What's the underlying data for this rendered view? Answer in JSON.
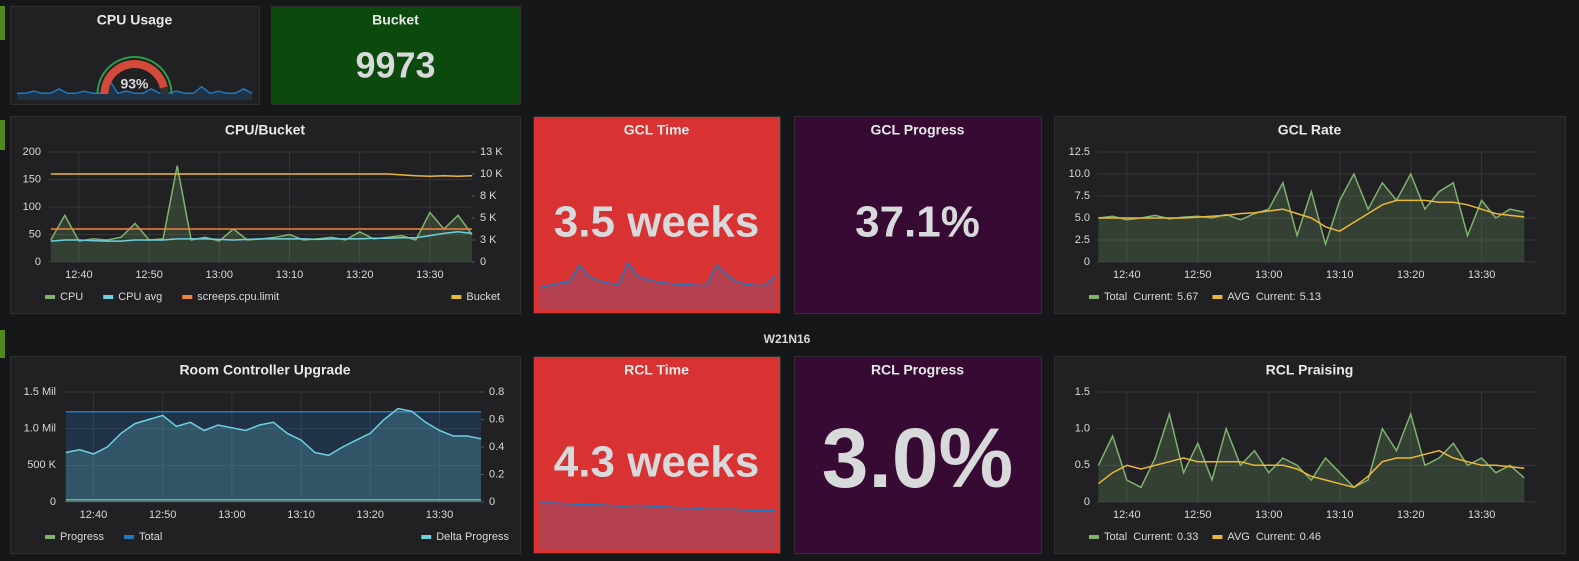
{
  "row_title": "W21N16",
  "chart_data": [
    {
      "type": "gauge",
      "title": "CPU Usage",
      "value": 93,
      "value_label": "93%",
      "ylim": [
        0,
        100
      ],
      "color": "#d44a3a",
      "spark_color": "#1f78c1",
      "spark": [
        3,
        3,
        4,
        3,
        3,
        5,
        3,
        3,
        4,
        3,
        3,
        9,
        3,
        4,
        3,
        3,
        5,
        3,
        3,
        4,
        3,
        3,
        6,
        3,
        4,
        3,
        3,
        5,
        3
      ]
    },
    {
      "type": "stat",
      "title": "Bucket",
      "value": 9973,
      "background": "#0b4a0c"
    },
    {
      "type": "line",
      "title": "CPU/Bucket",
      "grid": true,
      "xlim": [
        755.6,
        816
      ],
      "ylim": [
        0,
        200
      ],
      "y2lim": [
        0,
        12500
      ],
      "xticks": [
        {
          "value": 760,
          "label": "12:40"
        },
        {
          "value": 770,
          "label": "12:50"
        },
        {
          "value": 780,
          "label": "13:00"
        },
        {
          "value": 790,
          "label": "13:10"
        },
        {
          "value": 800,
          "label": "13:20"
        },
        {
          "value": 810,
          "label": "13:30"
        }
      ],
      "yticks": [
        0,
        50,
        100,
        150,
        200
      ],
      "y2ticks": [
        0,
        {
          "value": 2500,
          "label": "3 K"
        },
        {
          "value": 5000,
          "label": "5 K"
        },
        {
          "value": 7500,
          "label": "8 K"
        },
        {
          "value": 10000,
          "label": "10 K"
        },
        {
          "value": 12500,
          "label": "13 K"
        }
      ],
      "x": [
        756,
        758,
        760,
        762,
        764,
        766,
        768,
        770,
        772,
        774,
        776,
        778,
        780,
        782,
        784,
        786,
        788,
        790,
        792,
        794,
        796,
        798,
        800,
        802,
        804,
        806,
        808,
        810,
        812,
        814,
        816
      ],
      "series": [
        {
          "name": "CPU",
          "color": "#7eb26d",
          "fill": true,
          "values": [
            40,
            85,
            38,
            42,
            40,
            45,
            70,
            40,
            42,
            175,
            40,
            45,
            38,
            60,
            40,
            42,
            45,
            50,
            40,
            42,
            45,
            40,
            55,
            42,
            45,
            48,
            40,
            90,
            60,
            85,
            50
          ]
        },
        {
          "name": "CPU avg",
          "color": "#6ed0e0",
          "fill": false,
          "values": [
            38,
            40,
            40,
            39,
            38,
            38,
            40,
            40,
            40,
            42,
            42,
            42,
            41,
            40,
            41,
            42,
            42,
            42,
            42,
            41,
            42,
            42,
            42,
            43,
            43,
            44,
            44,
            48,
            52,
            55,
            52
          ]
        },
        {
          "name": "screeps.cpu.limit",
          "color": "#ef843c",
          "fill": false,
          "values": [
            60,
            60,
            60,
            60,
            60,
            60,
            60,
            60,
            60,
            60,
            60,
            60,
            60,
            60,
            60,
            60,
            60,
            60,
            60,
            60,
            60,
            60,
            60,
            60,
            60,
            60,
            60,
            60,
            60,
            60,
            60
          ]
        },
        {
          "name": "Bucket",
          "color": "#eab839",
          "fill": false,
          "axis": "y2",
          "values": [
            10000,
            10000,
            10000,
            10000,
            10000,
            10000,
            10000,
            10000,
            10000,
            10000,
            10000,
            10000,
            10000,
            10000,
            10000,
            10000,
            10000,
            10000,
            10000,
            10000,
            10000,
            10000,
            10000,
            10000,
            10000,
            9900,
            9800,
            9750,
            9800,
            9750,
            9800
          ]
        }
      ]
    },
    {
      "type": "stat",
      "title": "GCL Time",
      "value": "3.5 weeks",
      "background": "#d83232",
      "spark_color": "#1f78c1",
      "spark": [
        2,
        2.2,
        2.4,
        2.5,
        4,
        3,
        2.6,
        2.4,
        2.3,
        4.2,
        3,
        2.7,
        2.5,
        2.4,
        2.3,
        2.3,
        2.2,
        2.2,
        4,
        3.2,
        2.6,
        2.3,
        2.2,
        2.2,
        3
      ]
    },
    {
      "type": "stat",
      "title": "GCL Progress",
      "value": "37.1%",
      "background": "#370a33"
    },
    {
      "type": "line",
      "title": "GCL Rate",
      "grid": true,
      "legend_stat": "Current:",
      "xlim": [
        755.8,
        817.8
      ],
      "ylim": [
        0,
        12.5
      ],
      "xticks": [
        {
          "value": 760,
          "label": "12:40"
        },
        {
          "value": 770,
          "label": "12:50"
        },
        {
          "value": 780,
          "label": "13:00"
        },
        {
          "value": 790,
          "label": "13:10"
        },
        {
          "value": 800,
          "label": "13:20"
        },
        {
          "value": 810,
          "label": "13:30"
        }
      ],
      "yticks": [
        0,
        2.5,
        {
          "value": 5,
          "label": "5.0"
        },
        7.5,
        {
          "value": 10,
          "label": "10.0"
        },
        12.5
      ],
      "x": [
        756,
        758,
        760,
        762,
        764,
        766,
        768,
        770,
        772,
        774,
        776,
        778,
        780,
        782,
        784,
        786,
        788,
        790,
        792,
        794,
        796,
        798,
        800,
        802,
        804,
        806,
        808,
        810,
        812,
        814,
        816
      ],
      "series": [
        {
          "name": "Total",
          "color": "#7eb26d",
          "fill": true,
          "current": 5.67,
          "values": [
            5,
            5.2,
            4.8,
            5,
            5.3,
            4.9,
            5.1,
            5.2,
            5,
            5.4,
            4.8,
            5.5,
            6,
            9,
            3,
            8,
            2,
            7,
            10,
            6,
            9,
            7,
            10,
            6,
            8,
            9,
            3,
            7,
            5,
            6,
            5.67
          ]
        },
        {
          "name": "AVG",
          "color": "#eab839",
          "fill": false,
          "current": 5.13,
          "values": [
            5,
            5,
            5,
            5,
            5,
            5,
            5,
            5.1,
            5.2,
            5.3,
            5.5,
            5.6,
            5.8,
            6,
            5.5,
            5,
            4,
            3.5,
            4.5,
            5.5,
            6.5,
            7,
            7,
            7,
            6.8,
            6.8,
            6.5,
            6,
            5.5,
            5.3,
            5.13
          ]
        }
      ]
    },
    {
      "type": "line",
      "title": "Room Controller Upgrade",
      "grid": true,
      "xlim": [
        755.6,
        816
      ],
      "ylim": [
        0,
        1500000
      ],
      "y2lim": [
        0,
        0.8
      ],
      "xticks": [
        {
          "value": 760,
          "label": "12:40"
        },
        {
          "value": 770,
          "label": "12:50"
        },
        {
          "value": 780,
          "label": "13:00"
        },
        {
          "value": 790,
          "label": "13:10"
        },
        {
          "value": 800,
          "label": "13:20"
        },
        {
          "value": 810,
          "label": "13:30"
        }
      ],
      "yticks": [
        0,
        {
          "value": 500000,
          "label": "500 K"
        },
        {
          "value": 1000000,
          "label": "1.0 Mil"
        },
        {
          "value": 1500000,
          "label": "1.5 Mil"
        }
      ],
      "y2ticks": [
        0,
        0.2,
        0.4,
        0.6,
        0.8
      ],
      "x": [
        756,
        758,
        760,
        762,
        764,
        766,
        768,
        770,
        772,
        774,
        776,
        778,
        780,
        782,
        784,
        786,
        788,
        790,
        792,
        794,
        796,
        798,
        800,
        802,
        804,
        806,
        808,
        810,
        812,
        814,
        816
      ],
      "series": [
        {
          "name": "Progress",
          "color": "#7eb26d",
          "fill": true,
          "values": [
            30000,
            30000,
            30000,
            30000,
            30000,
            30000,
            30000,
            30000,
            30000,
            30000,
            30000,
            30000,
            30000,
            30000,
            30000,
            30000,
            30000,
            30000,
            30000,
            30000,
            30000,
            30000,
            30000,
            30000,
            30000,
            30000,
            30000,
            30000,
            30000,
            30000,
            30000
          ]
        },
        {
          "name": "Total",
          "color": "#1f78c1",
          "fill": true,
          "values": [
            1230000,
            1230000,
            1230000,
            1230000,
            1230000,
            1230000,
            1230000,
            1230000,
            1230000,
            1230000,
            1230000,
            1230000,
            1230000,
            1230000,
            1230000,
            1230000,
            1230000,
            1230000,
            1230000,
            1230000,
            1230000,
            1230000,
            1230000,
            1230000,
            1230000,
            1230000,
            1230000,
            1230000,
            1230000,
            1230000,
            1230000
          ]
        },
        {
          "name": "Delta Progress",
          "color": "#6ed0e0",
          "fill": true,
          "axis": "y2",
          "values": [
            0.36,
            0.38,
            0.35,
            0.4,
            0.5,
            0.57,
            0.6,
            0.63,
            0.55,
            0.58,
            0.52,
            0.56,
            0.54,
            0.52,
            0.56,
            0.58,
            0.5,
            0.45,
            0.36,
            0.34,
            0.4,
            0.45,
            0.5,
            0.6,
            0.68,
            0.66,
            0.58,
            0.52,
            0.48,
            0.48,
            0.46
          ]
        }
      ]
    },
    {
      "type": "stat",
      "title": "RCL Time",
      "value": "4.3 weeks",
      "background": "#d83232",
      "spark_color": "#1f78c1",
      "spark": [
        3,
        3,
        2.95,
        2.9,
        2.9,
        2.85,
        2.8,
        2.85,
        2.8,
        2.75,
        2.7,
        2.7,
        2.6,
        2.6,
        2.6,
        2.55,
        2.5,
        2.5
      ]
    },
    {
      "type": "stat",
      "title": "RCL Progress",
      "value": "3.0%",
      "background": "#370a33"
    },
    {
      "type": "line",
      "title": "RCL Praising",
      "grid": true,
      "legend_stat": "Current:",
      "xlim": [
        755.8,
        817.8
      ],
      "ylim": [
        0,
        1.5
      ],
      "xticks": [
        {
          "value": 760,
          "label": "12:40"
        },
        {
          "value": 770,
          "label": "12:50"
        },
        {
          "value": 780,
          "label": "13:00"
        },
        {
          "value": 790,
          "label": "13:10"
        },
        {
          "value": 800,
          "label": "13:20"
        },
        {
          "value": 810,
          "label": "13:30"
        }
      ],
      "yticks": [
        0,
        0.5,
        {
          "value": 1,
          "label": "1.0"
        },
        1.5
      ],
      "x": [
        756,
        758,
        760,
        762,
        764,
        766,
        768,
        770,
        772,
        774,
        776,
        778,
        780,
        782,
        784,
        786,
        788,
        790,
        792,
        794,
        796,
        798,
        800,
        802,
        804,
        806,
        808,
        810,
        812,
        814,
        816
      ],
      "series": [
        {
          "name": "Total",
          "color": "#7eb26d",
          "fill": true,
          "current": 0.33,
          "values": [
            0.5,
            0.9,
            0.3,
            0.2,
            0.6,
            1.2,
            0.4,
            0.8,
            0.3,
            1,
            0.5,
            0.7,
            0.4,
            0.6,
            0.5,
            0.3,
            0.6,
            0.4,
            0.2,
            0.3,
            1,
            0.7,
            1.2,
            0.5,
            0.6,
            0.8,
            0.5,
            0.6,
            0.4,
            0.5,
            0.33
          ]
        },
        {
          "name": "AVG",
          "color": "#eab839",
          "fill": false,
          "current": 0.46,
          "values": [
            0.25,
            0.4,
            0.5,
            0.45,
            0.5,
            0.55,
            0.6,
            0.55,
            0.55,
            0.55,
            0.55,
            0.5,
            0.5,
            0.5,
            0.45,
            0.35,
            0.3,
            0.25,
            0.2,
            0.35,
            0.55,
            0.6,
            0.6,
            0.65,
            0.7,
            0.6,
            0.55,
            0.5,
            0.5,
            0.48,
            0.46
          ]
        }
      ]
    }
  ]
}
